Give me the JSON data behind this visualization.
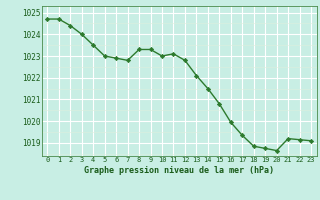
{
  "x": [
    0,
    1,
    2,
    3,
    4,
    5,
    6,
    7,
    8,
    9,
    10,
    11,
    12,
    13,
    14,
    15,
    16,
    17,
    18,
    19,
    20,
    21,
    22,
    23
  ],
  "y": [
    1024.7,
    1024.7,
    1024.4,
    1024.0,
    1023.5,
    1023.0,
    1022.9,
    1022.8,
    1023.3,
    1023.3,
    1023.0,
    1023.1,
    1022.8,
    1022.1,
    1021.5,
    1020.8,
    1019.95,
    1019.35,
    1018.85,
    1018.75,
    1018.65,
    1019.2,
    1019.15,
    1019.1
  ],
  "line_color": "#2d7a2d",
  "marker_color": "#2d7a2d",
  "bg_color": "#c8eee4",
  "grid_major_color": "#ffffff",
  "grid_minor_color": "#ddeedd",
  "xlabel": "Graphe pression niveau de la mer (hPa)",
  "xlabel_color": "#1a5c1a",
  "tick_color": "#1a5c1a",
  "spine_color": "#4a8a4a",
  "ylim": [
    1018.4,
    1025.3
  ],
  "yticks": [
    1019,
    1020,
    1021,
    1022,
    1023,
    1024,
    1025
  ],
  "xlim": [
    -0.5,
    23.5
  ],
  "xticks": [
    0,
    1,
    2,
    3,
    4,
    5,
    6,
    7,
    8,
    9,
    10,
    11,
    12,
    13,
    14,
    15,
    16,
    17,
    18,
    19,
    20,
    21,
    22,
    23
  ]
}
